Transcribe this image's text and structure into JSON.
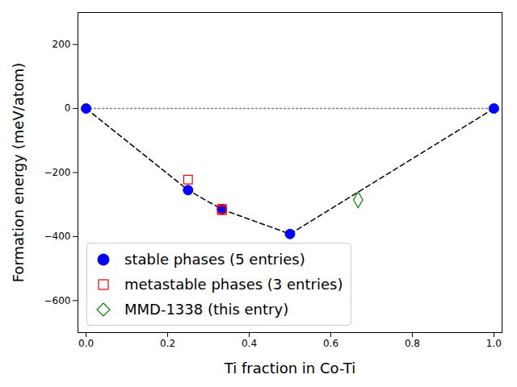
{
  "chart_data": {
    "type": "scatter",
    "xlabel": "Ti fraction in Co-Ti",
    "ylabel": "Formation energy (meV/atom)",
    "xlim": [
      -0.02,
      1.02
    ],
    "ylim": [
      -700,
      300
    ],
    "xticks": [
      {
        "value": 0,
        "label": "0.0"
      },
      {
        "value": 0.2,
        "label": "0.2"
      },
      {
        "value": 0.4,
        "label": "0.4"
      },
      {
        "value": 0.6,
        "label": "0.6"
      },
      {
        "value": 0.8,
        "label": "0.8"
      },
      {
        "value": 1,
        "label": "1.0"
      }
    ],
    "yticks": [
      -600,
      -400,
      -200,
      0,
      200
    ],
    "legend": "lower left",
    "series": [
      {
        "type": "line",
        "line_style": "dotted",
        "color": "#808080",
        "x": [
          0,
          1
        ],
        "values": [
          0,
          0
        ]
      },
      {
        "type": "line",
        "line_style": "dashed",
        "color": "#000000",
        "x": [
          0,
          0.25,
          0.333,
          0.5,
          1
        ],
        "values": [
          0,
          -255,
          -315,
          -392,
          0
        ]
      },
      {
        "name": "stable phases (5 entries)",
        "type": "scatter",
        "marker": "circle",
        "color": "#0000ff",
        "x": [
          0,
          0.25,
          0.333,
          0.5,
          1
        ],
        "values": [
          0,
          -255,
          -315,
          -392,
          0
        ]
      },
      {
        "name": "metastable phases (3 entries)",
        "type": "scatter",
        "marker": "square-open",
        "color": "#ff0000",
        "x": [
          0.25,
          0.333,
          0.333
        ],
        "values": [
          -222,
          -313,
          -318
        ]
      },
      {
        "name": "MMD-1338 (this entry)",
        "type": "scatter",
        "marker": "diamond-open",
        "color": "#008000",
        "x": [
          0.667
        ],
        "values": [
          -285
        ]
      }
    ]
  }
}
